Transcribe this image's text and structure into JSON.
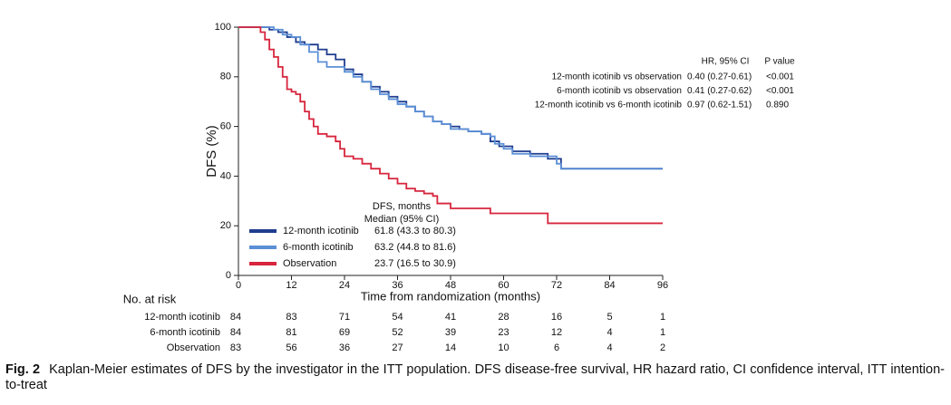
{
  "chart_data": {
    "type": "line",
    "step": true,
    "y_label": "DFS (%)",
    "x_label": "Time from randomization (months)",
    "xlim": [
      0,
      96
    ],
    "xticks": [
      0,
      12,
      24,
      36,
      48,
      60,
      72,
      84,
      96
    ],
    "ylim": [
      0,
      100
    ],
    "yticks": [
      0,
      20,
      40,
      60,
      80,
      100
    ],
    "legend_title": "DFS, months",
    "legend_subtitle": "Median (95% CI)",
    "series": [
      {
        "name": "12-month icotinib",
        "color": "#1f3d8f",
        "median": "61.8 (43.3 to 80.3)",
        "x": [
          0,
          7,
          9,
          11,
          13,
          15,
          18,
          20,
          22,
          24,
          26,
          28,
          30,
          32,
          34,
          36,
          38,
          40,
          42,
          44,
          46,
          48,
          50,
          52,
          55,
          57,
          59,
          62,
          66,
          70,
          73,
          96
        ],
        "values": [
          100,
          99,
          98,
          96,
          94,
          93,
          91,
          89,
          87,
          83,
          81,
          78,
          76,
          74,
          72,
          70,
          68,
          66,
          64,
          62,
          61,
          60,
          59,
          58,
          57,
          54,
          52,
          50,
          49,
          47,
          43,
          43
        ]
      },
      {
        "name": "6-month icotinib",
        "color": "#5b8fd6",
        "median": "63.2 (44.8 to 81.6)",
        "x": [
          0,
          8,
          10,
          12,
          14,
          16,
          18,
          20,
          24,
          26,
          28,
          30,
          32,
          34,
          36,
          38,
          40,
          42,
          44,
          46,
          48,
          52,
          55,
          57,
          58,
          60,
          62,
          66,
          72,
          73,
          96
        ],
        "values": [
          100,
          99,
          97,
          96,
          93,
          90,
          86,
          84,
          82,
          80,
          78,
          75,
          73,
          71,
          69,
          68,
          66,
          64,
          62,
          61,
          59,
          58,
          57,
          56,
          53,
          51,
          49,
          48,
          45,
          43,
          43
        ]
      },
      {
        "name": "Observation",
        "color": "#d7263d",
        "median": "23.7 (16.5 to 30.9)",
        "x": [
          0,
          5,
          6,
          7,
          8,
          9,
          10,
          11,
          12,
          13,
          14,
          15,
          16,
          17,
          18,
          20,
          22,
          23,
          24,
          26,
          28,
          30,
          32,
          34,
          36,
          38,
          40,
          42,
          44,
          45,
          48,
          57,
          70,
          96
        ],
        "values": [
          100,
          98,
          95,
          91,
          88,
          84,
          80,
          75,
          74,
          73,
          70,
          66,
          63,
          60,
          57,
          56,
          54,
          51,
          48,
          47,
          45,
          43,
          41,
          39,
          37,
          35,
          34,
          33,
          32,
          29,
          27,
          25,
          21,
          21
        ]
      }
    ],
    "hr_table": {
      "headers": [
        "HR, 95% CI",
        "P value"
      ],
      "rows": [
        {
          "label": "12-month icotinib vs observation",
          "hr": "0.40 (0.27-0.61)",
          "p": "<0.001"
        },
        {
          "label": "6-month icotinib vs observation",
          "hr": "0.41 (0.27-0.62)",
          "p": "<0.001"
        },
        {
          "label": "12-month icotinib vs 6-month icotinib",
          "hr": "0.97 (0.62-1.51)",
          "p": "0.890"
        }
      ]
    },
    "risk_table": {
      "title": "No. at risk",
      "rows": [
        {
          "label": "12-month icotinib",
          "counts": [
            84,
            83,
            71,
            54,
            41,
            28,
            16,
            5,
            1
          ]
        },
        {
          "label": "6-month icotinib",
          "counts": [
            84,
            81,
            69,
            52,
            39,
            23,
            12,
            4,
            1
          ]
        },
        {
          "label": "Observation",
          "counts": [
            83,
            56,
            36,
            27,
            14,
            10,
            6,
            4,
            2
          ]
        }
      ]
    }
  },
  "caption": {
    "label": "Fig. 2",
    "text": "Kaplan-Meier estimates of DFS by the investigator in the ITT population. DFS disease-free survival, HR hazard ratio, CI confidence interval, ITT intention-to-treat"
  }
}
